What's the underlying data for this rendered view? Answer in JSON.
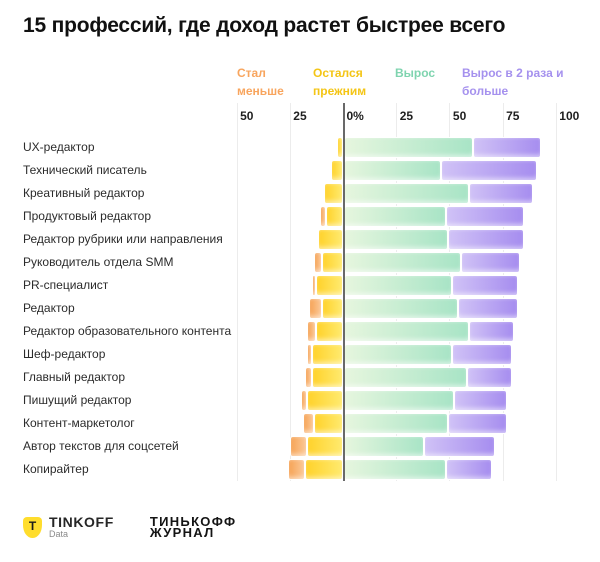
{
  "title": "15 профессий, где доход растет быстрее всего",
  "legend": {
    "items": [
      {
        "label": "Стал меньше",
        "color": "#f8a55e"
      },
      {
        "label": "Остался прежним",
        "color": "#f4c515"
      },
      {
        "label": "Вырос",
        "color": "#7fd4af"
      },
      {
        "label": "Вырос в 2 раза и больше",
        "color": "#a591ee"
      }
    ]
  },
  "axis": {
    "ticks": [
      {
        "label": "50",
        "value": -50
      },
      {
        "label": "25",
        "value": -25
      },
      {
        "label": "0%",
        "value": 0
      },
      {
        "label": "25",
        "value": 25
      },
      {
        "label": "50",
        "value": 50
      },
      {
        "label": "75",
        "value": 75
      },
      {
        "label": "100",
        "value": 100
      }
    ]
  },
  "chart_data": {
    "type": "bar",
    "variant": "horizontal-diverging-stacked",
    "unit": "percent",
    "title": "15 профессий, где доход растет быстрее всего",
    "xlim": [
      -50,
      107
    ],
    "grid": true,
    "zero_line": true,
    "legend_position": "top",
    "categories": [
      "UX-редактор",
      "Технический писатель",
      "Креативный редактор",
      "Продуктовый редактор",
      "Редактор рубрики или направления",
      "Руководитель отдела SMM",
      "PR-специалист",
      "Редактор",
      "Редактор образовательного контента",
      "Шеф-редактор",
      "Главный редактор",
      "Пишущий редактор",
      "Контент-маркетолог",
      "Автор текстов для соцсетей",
      "Копирайтер"
    ],
    "series": [
      {
        "name": "Стал меньше",
        "direction": "negative",
        "gradient": [
          "#F6A355",
          "#FBC897"
        ],
        "values": [
          1,
          0,
          0,
          3,
          0,
          4,
          2,
          6,
          4,
          2,
          3,
          3,
          5,
          8,
          8
        ]
      },
      {
        "name": "Остался прежним",
        "direction": "negative",
        "gradient": [
          "#FFD22B",
          "#FFEA6E"
        ],
        "values": [
          3,
          6,
          9,
          8,
          12,
          10,
          13,
          10,
          13,
          15,
          15,
          17,
          14,
          17,
          18
        ]
      },
      {
        "name": "Вырос",
        "direction": "positive",
        "gradient": [
          "#E6F6DE",
          "#A8E4C6"
        ],
        "values": [
          61,
          46,
          59,
          48,
          49,
          55,
          51,
          54,
          59,
          51,
          58,
          52,
          49,
          38,
          48
        ]
      },
      {
        "name": "Вырос в 2 раза и больше",
        "direction": "positive",
        "gradient": [
          "#D0C2F6",
          "#A68DEF"
        ],
        "values": [
          32,
          45,
          30,
          37,
          36,
          28,
          31,
          28,
          21,
          28,
          21,
          25,
          28,
          33,
          22
        ]
      }
    ]
  },
  "colors": {
    "grid": "#ececec",
    "zero_line": "#3f3f3f",
    "title": "#111111",
    "category_label": "#2b2b2b",
    "tick_label": "#1f1f1f",
    "tinkoff_yellow": "#FFDD2D"
  },
  "footer": {
    "tinkoff": {
      "letter": "T",
      "name": "TINKOFF",
      "sub": "Data"
    },
    "journal": {
      "line1": "ТИНЬКОФФ",
      "line2": "ЖУРНАЛ"
    }
  }
}
